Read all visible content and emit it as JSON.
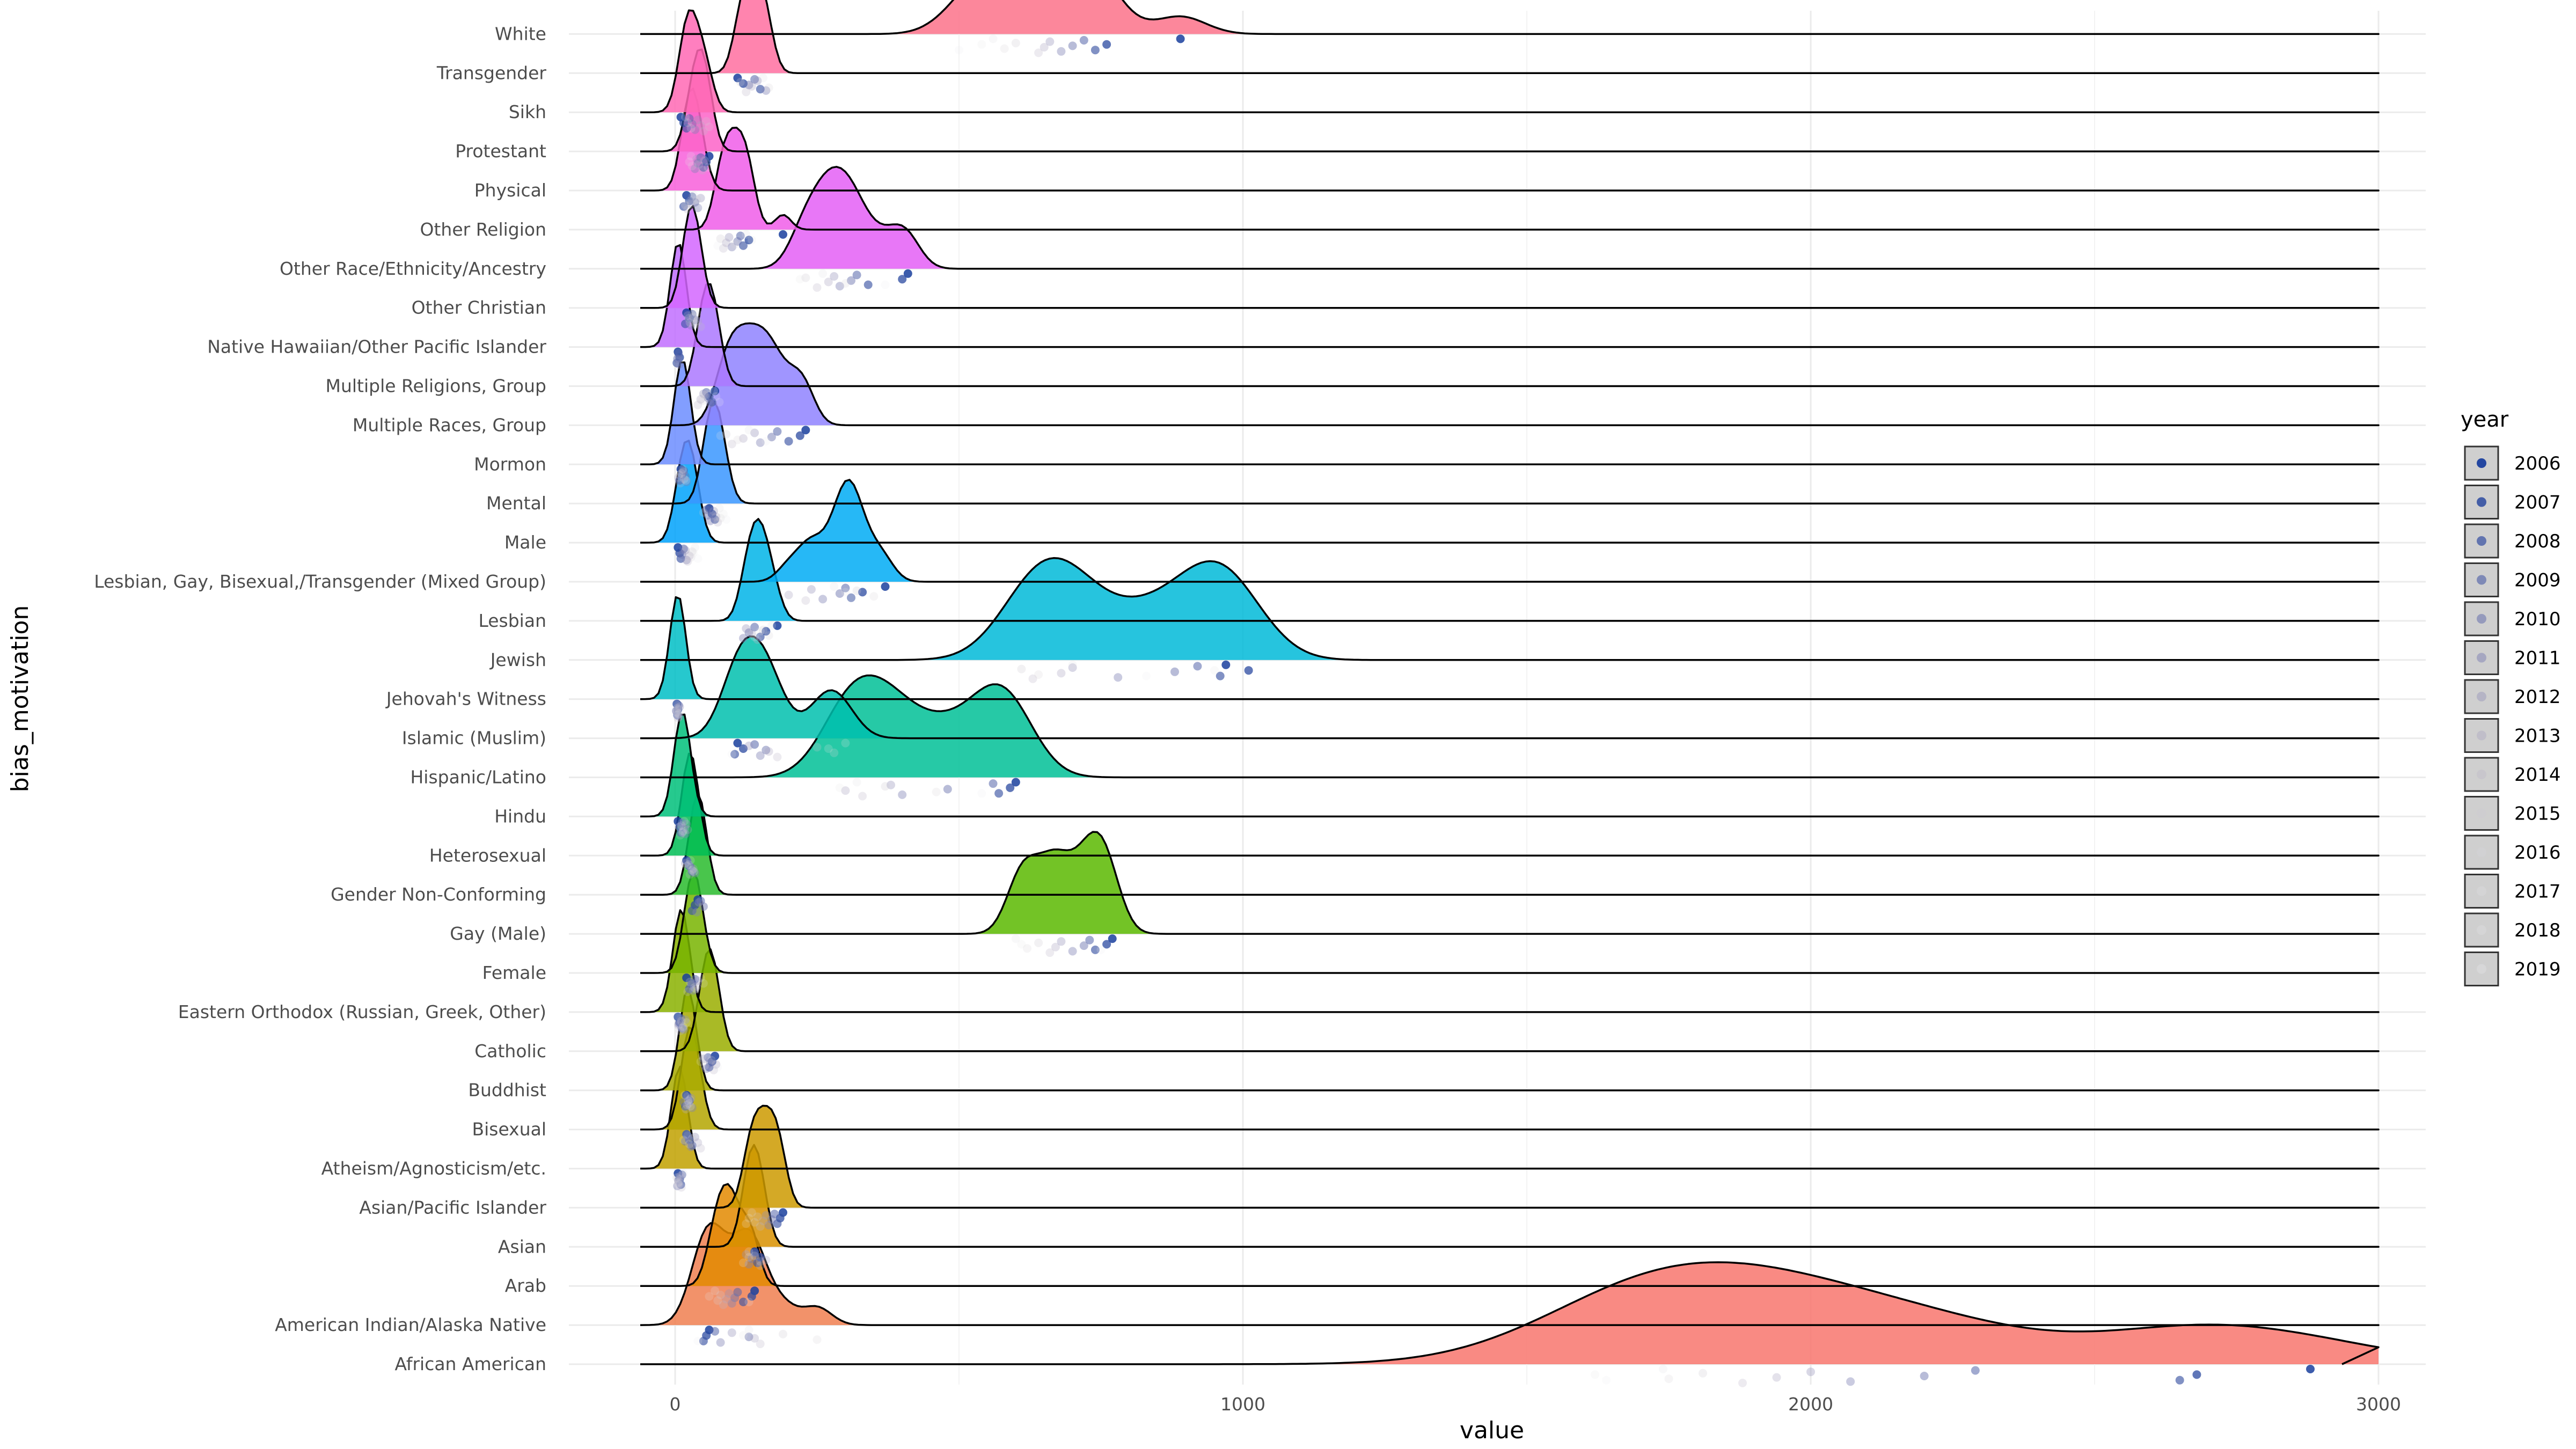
{
  "chart_data": {
    "type": "ridgeline",
    "xlabel": "value",
    "ylabel": "bias_motivation",
    "xlim": [
      -60,
      3060
    ],
    "x_ticks": [
      0,
      1000,
      2000,
      3000
    ],
    "grid": true,
    "legend": {
      "title": "year",
      "position": "right",
      "entries": [
        {
          "label": "2006",
          "color": "#1a3f9e",
          "alpha": 0.85
        },
        {
          "label": "2007",
          "color": "#2b4aa0",
          "alpha": 0.75
        },
        {
          "label": "2008",
          "color": "#3e56a4",
          "alpha": 0.65
        },
        {
          "label": "2009",
          "color": "#5364a9",
          "alpha": 0.55
        },
        {
          "label": "2010",
          "color": "#6a74ae",
          "alpha": 0.48
        },
        {
          "label": "2011",
          "color": "#8083b4",
          "alpha": 0.42
        },
        {
          "label": "2012",
          "color": "#9694ba",
          "alpha": 0.36
        },
        {
          "label": "2013",
          "color": "#aca6c1",
          "alpha": 0.32
        },
        {
          "label": "2014",
          "color": "#bdb8c9",
          "alpha": 0.28
        },
        {
          "label": "2015",
          "color": "#cbc8d1",
          "alpha": 0.25
        },
        {
          "label": "2016",
          "color": "#d6d5da",
          "alpha": 0.23
        },
        {
          "label": "2017",
          "color": "#dfdfe2",
          "alpha": 0.22
        },
        {
          "label": "2018",
          "color": "#e6e6e8",
          "alpha": 0.2
        },
        {
          "label": "2019",
          "color": "#ececee",
          "alpha": 0.2
        }
      ]
    },
    "categories": [
      {
        "name": "African American",
        "color": "#f8766d",
        "values": [
          2880,
          2680,
          2650,
          2290,
          2200,
          2070,
          2000,
          1940,
          1880,
          1810,
          1750,
          1740,
          1620,
          1640
        ]
      },
      {
        "name": "American Indian/Alaska Native",
        "color": "#f07f50",
        "values": [
          60,
          55,
          50,
          70,
          130,
          80,
          100,
          140,
          150,
          190,
          250,
          130,
          120,
          40
        ]
      },
      {
        "name": "Arab",
        "color": "#e38900",
        "values": [
          140,
          135,
          120,
          110,
          105,
          100,
          95,
          90,
          85,
          80,
          75,
          70,
          60,
          130
        ]
      },
      {
        "name": "Asian",
        "color": "#d89000",
        "values": [
          140,
          150,
          145,
          140,
          135,
          130,
          125,
          160,
          150,
          140,
          150,
          130,
          130,
          120
        ]
      },
      {
        "name": "Asian/Pacific Islander",
        "color": "#cc9a00",
        "values": [
          190,
          185,
          180,
          175,
          170,
          165,
          160,
          155,
          150,
          145,
          140,
          135,
          130,
          125
        ]
      },
      {
        "name": "Atheism/Agnosticism/etc.",
        "color": "#c1a100",
        "values": [
          5,
          8,
          10,
          12,
          6,
          4,
          9,
          7,
          11,
          3,
          5,
          14,
          8,
          6
        ]
      },
      {
        "name": "Bisexual",
        "color": "#b4a600",
        "values": [
          20,
          25,
          30,
          22,
          18,
          28,
          35,
          40,
          45,
          30,
          25,
          20,
          15,
          38
        ]
      },
      {
        "name": "Buddhist",
        "color": "#a8aa00",
        "values": [
          20,
          25,
          18,
          22,
          15,
          30,
          28,
          24,
          19,
          26,
          21,
          17,
          23,
          27
        ]
      },
      {
        "name": "Catholic",
        "color": "#9aae00",
        "values": [
          70,
          65,
          60,
          58,
          62,
          55,
          50,
          72,
          68,
          64,
          52,
          48,
          45,
          75
        ]
      },
      {
        "name": "Eastern Orthodox (Russian, Greek, Other)",
        "color": "#8ab100",
        "values": [
          5,
          8,
          12,
          10,
          7,
          15,
          18,
          6,
          9,
          11,
          14,
          4,
          20,
          13
        ]
      },
      {
        "name": "Female",
        "color": "#78b400",
        "values": [
          20,
          30,
          25,
          35,
          28,
          32,
          40,
          38,
          22,
          26,
          34,
          45,
          50,
          36
        ]
      },
      {
        "name": "Gay (Male)",
        "color": "#5bb800",
        "values": [
          770,
          760,
          740,
          730,
          720,
          700,
          680,
          670,
          660,
          640,
          620,
          600,
          610,
          750
        ]
      },
      {
        "name": "Gender Non-Conforming",
        "color": "#29bb2d",
        "values": [
          40,
          35,
          30,
          45,
          50,
          38,
          42
        ]
      },
      {
        "name": "Heterosexual",
        "color": "#00bd55",
        "values": [
          20,
          25,
          30,
          22,
          28,
          35,
          18,
          32,
          26,
          24,
          30,
          27,
          21,
          33
        ]
      },
      {
        "name": "Hindu",
        "color": "#00c07a",
        "values": [
          5,
          8,
          10,
          12,
          15,
          18,
          20,
          22,
          9,
          11,
          14,
          16,
          7,
          13
        ]
      },
      {
        "name": "Hispanic/Latino",
        "color": "#00c096",
        "values": [
          600,
          590,
          570,
          560,
          480,
          400,
          380,
          300,
          330,
          370,
          460,
          320,
          290,
          540
        ]
      },
      {
        "name": "Islamic (Muslim)",
        "color": "#00c0ae",
        "values": [
          110,
          120,
          105,
          140,
          160,
          150,
          130,
          165,
          180,
          250,
          280,
          300,
          270,
          100
        ]
      },
      {
        "name": "Jehovah's Witness",
        "color": "#00bec5",
        "values": [
          3,
          5,
          4,
          6,
          2,
          7,
          8,
          3,
          5,
          4,
          6,
          2,
          5,
          4
        ]
      },
      {
        "name": "Jewish",
        "color": "#00bad8",
        "values": [
          970,
          1010,
          960,
          920,
          880,
          780,
          700,
          680,
          630,
          610,
          640,
          700,
          950,
          830
        ]
      },
      {
        "name": "Lesbian",
        "color": "#00b4e7",
        "values": [
          180,
          160,
          150,
          140,
          130,
          120,
          125,
          135,
          145,
          155,
          165,
          170,
          150,
          140
        ]
      },
      {
        "name": "Lesbian, Gay, Bisexual,/Transgender (Mixed Group)",
        "color": "#00abf4",
        "values": [
          370,
          330,
          310,
          300,
          290,
          260,
          240,
          200,
          230,
          320,
          350,
          280,
          300,
          310
        ]
      },
      {
        "name": "Male",
        "color": "#00a2fb",
        "values": [
          5,
          8,
          10,
          15,
          12,
          20,
          18,
          25,
          22,
          30,
          28,
          35,
          32,
          40
        ]
      },
      {
        "name": "Mental",
        "color": "#3a97ff",
        "values": [
          60,
          65,
          70,
          55,
          58,
          62,
          68,
          72,
          75,
          50,
          80,
          78,
          85,
          90
        ]
      },
      {
        "name": "Mormon",
        "color": "#6c8dff",
        "values": [
          10,
          12,
          8,
          15,
          18,
          20,
          14,
          6,
          9,
          11,
          16,
          13,
          7,
          19
        ]
      },
      {
        "name": "Multiple Races, Group",
        "color": "#8f82ff",
        "values": [
          230,
          220,
          200,
          180,
          170,
          150,
          140,
          120,
          100,
          90,
          110,
          130,
          80,
          160
        ]
      },
      {
        "name": "Multiple Religions, Group",
        "color": "#ab78ff",
        "values": [
          70,
          60,
          65,
          55,
          58,
          62,
          50,
          45,
          40,
          52,
          48,
          68,
          72,
          78
        ]
      },
      {
        "name": "Native Hawaiian/Other Pacific Islander",
        "color": "#c16fff",
        "values": [
          5,
          8,
          3,
          6,
          4,
          7
        ]
      },
      {
        "name": "Other Christian",
        "color": "#d466ff",
        "values": [
          20,
          25,
          18,
          30,
          35,
          28,
          22,
          40,
          45,
          32,
          26,
          38,
          24,
          36
        ]
      },
      {
        "name": "Other Race/Ethnicity/Ancestry",
        "color": "#e45ff6",
        "values": [
          410,
          400,
          340,
          320,
          310,
          290,
          280,
          270,
          250,
          230,
          300,
          260,
          220,
          370
        ]
      },
      {
        "name": "Other Religion",
        "color": "#f05de9",
        "values": [
          190,
          130,
          120,
          115,
          110,
          100,
          95,
          90,
          85,
          80,
          105,
          125,
          135,
          75
        ]
      },
      {
        "name": "Physical",
        "color": "#f85fda",
        "values": [
          20,
          25,
          15,
          30,
          35,
          40,
          45,
          28,
          22,
          38,
          18,
          33,
          26,
          50
        ]
      },
      {
        "name": "Protestant",
        "color": "#fd63c8",
        "values": [
          60,
          55,
          50,
          45,
          40,
          35,
          38,
          42,
          48,
          52,
          30,
          28,
          25,
          58
        ]
      },
      {
        "name": "Sikh",
        "color": "#ff69b4",
        "values": [
          10,
          15,
          20,
          25,
          30,
          35,
          40,
          45,
          50,
          55,
          60,
          18,
          22,
          28
        ]
      },
      {
        "name": "Transgender",
        "color": "#ff6fa0",
        "values": [
          110,
          120,
          150,
          140,
          130,
          160,
          145,
          135,
          125,
          115,
          165,
          155
        ]
      },
      {
        "name": "White",
        "color": "#fc7289",
        "values": [
          890,
          760,
          740,
          720,
          700,
          680,
          660,
          650,
          640,
          600,
          580,
          560,
          540,
          500
        ]
      }
    ]
  }
}
